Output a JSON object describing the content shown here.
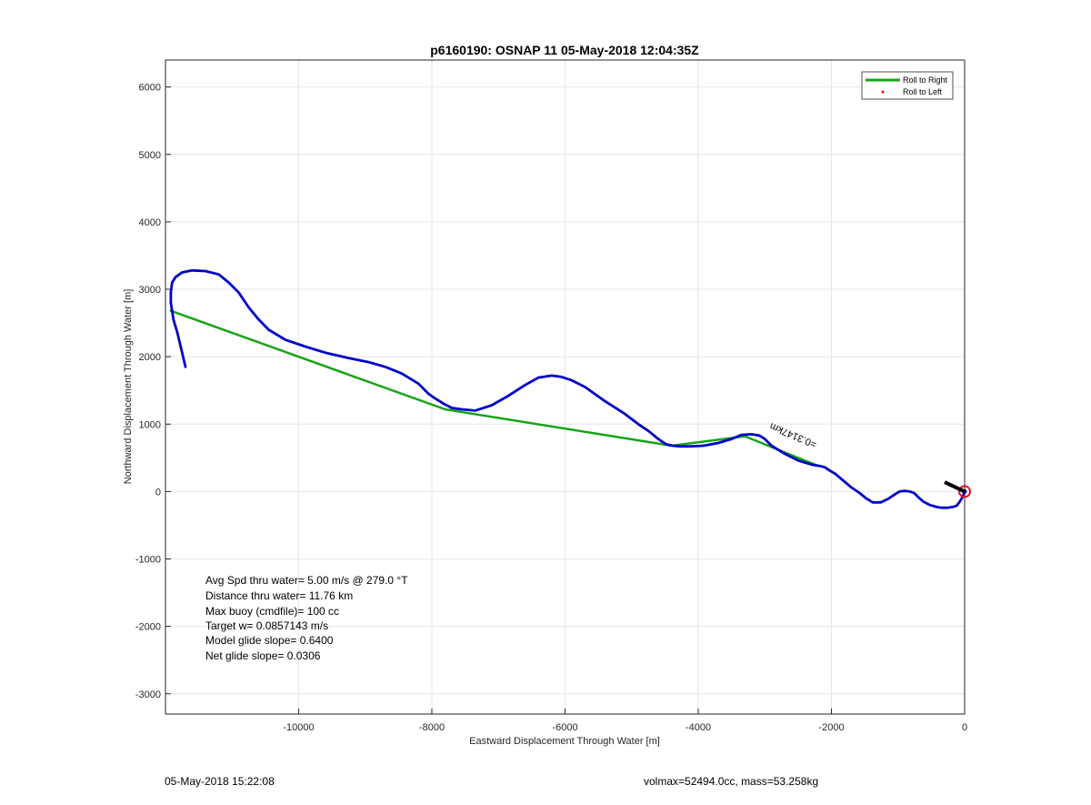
{
  "chart_data": {
    "type": "line",
    "title": "p6160190: OSNAP 11 05-May-2018 12:04:35Z",
    "xlabel": "Eastward Displacement Through Water [m]",
    "ylabel": "Northward Displacement Through Water [m]",
    "xlim": [
      -12000,
      0
    ],
    "ylim": [
      -3300,
      6400
    ],
    "xticks": [
      -10000,
      -8000,
      -6000,
      -4000,
      -2000,
      0
    ],
    "xtick_labels": [
      "-10000",
      "-8000",
      "-6000",
      "-4000",
      "-2000",
      "0"
    ],
    "yticks": [
      -3000,
      -2000,
      -1000,
      0,
      1000,
      2000,
      3000,
      4000,
      5000,
      6000
    ],
    "ytick_labels": [
      "-3000",
      "-2000",
      "-1000",
      "0",
      "1000",
      "2000",
      "3000",
      "4000",
      "5000",
      "6000"
    ],
    "grid": true,
    "legend": {
      "position": "top-right",
      "entries": [
        {
          "label": "Roll to Right",
          "color": "#17a317",
          "marker": "line"
        },
        {
          "label": "Roll to Left",
          "color": "#ff0000",
          "marker": "dot"
        }
      ]
    },
    "series": [
      {
        "name": "Roll to Right",
        "color": "#17a317",
        "x": [
          -11920,
          -7800,
          -4400,
          -3300,
          -2200
        ],
        "y": [
          2680,
          1220,
          680,
          820,
          380
        ]
      },
      {
        "color": "#0000c8",
        "x": [
          0,
          -30,
          -80,
          -120,
          -180,
          -260,
          -340,
          -420,
          -520,
          -620,
          -700,
          -760,
          -820,
          -900,
          -980,
          -1060,
          -1150,
          -1260,
          -1380,
          -1480,
          -1580,
          -1700,
          -1820,
          -1940,
          -2040,
          -2100,
          -2180,
          -2300,
          -2500,
          -2700,
          -2900,
          -3000,
          -3080,
          -3200,
          -3350,
          -3500,
          -3700,
          -3920,
          -4100,
          -4280,
          -4380,
          -4480,
          -4600,
          -4750,
          -4900,
          -5100,
          -5400,
          -5700,
          -5900,
          -6050,
          -6200,
          -6400,
          -6600,
          -6850,
          -7100,
          -7350,
          -7550,
          -7700,
          -7820,
          -7950,
          -8050,
          -8200,
          -8450,
          -8700,
          -8950,
          -9250,
          -9600,
          -9900,
          -10200,
          -10450,
          -10600,
          -10750,
          -10900,
          -11050,
          -11200,
          -11400,
          -11600,
          -11750,
          -11850,
          -11900,
          -11920,
          -11920,
          -11880,
          -11820,
          -11760,
          -11700
        ],
        "y": [
          0,
          -80,
          -160,
          -210,
          -230,
          -240,
          -240,
          -230,
          -200,
          -150,
          -80,
          -20,
          0,
          10,
          0,
          -50,
          -110,
          -160,
          -160,
          -100,
          -20,
          60,
          160,
          260,
          320,
          360,
          380,
          400,
          460,
          560,
          680,
          780,
          830,
          850,
          840,
          780,
          720,
          680,
          670,
          670,
          680,
          700,
          780,
          900,
          1000,
          1150,
          1340,
          1550,
          1650,
          1700,
          1720,
          1690,
          1580,
          1420,
          1280,
          1200,
          1220,
          1240,
          1300,
          1380,
          1450,
          1600,
          1750,
          1850,
          1920,
          1980,
          2060,
          2150,
          2250,
          2400,
          2550,
          2730,
          2950,
          3100,
          3220,
          3270,
          3280,
          3250,
          3180,
          3100,
          2950,
          2800,
          2550,
          2350,
          2100,
          1850
        ]
      }
    ],
    "annotations": [
      {
        "text": "=0.3147km",
        "x": -2900,
        "y": 1020
      },
      {
        "text": "Avg Spd thru water=  5.00 m/s @ 279.0 °T"
      },
      {
        "text": "Distance thru water= 11.76 km"
      },
      {
        "text": "Max buoy (cmdfile)= 100 cc"
      },
      {
        "text": "Target w= 0.0857143 m/s"
      },
      {
        "text": "Model glide slope= 0.6400"
      },
      {
        "text": "Net glide slope= 0.0306"
      }
    ]
  },
  "footer": {
    "left": "05-May-2018 15:22:08",
    "right": "volmax=52494.0cc, mass=53.258kg"
  }
}
